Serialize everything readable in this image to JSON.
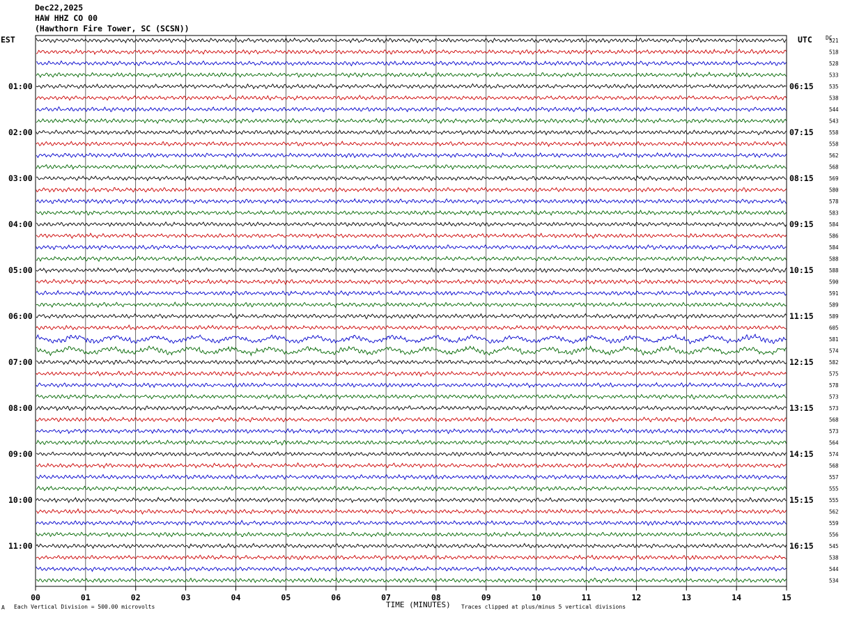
{
  "header": {
    "date": "Dec22,2025",
    "channel": "HAW HHZ CO 00",
    "station": "(Hawthorn Fire Tower, SC (SCSN))"
  },
  "left_zone_label": "EST",
  "right_zone_label": "UTC",
  "dc_label": "DC",
  "footer": {
    "scale_note": "Each Vertical Division =  500.00 microvolts",
    "xlabel": "TIME (MINUTES)",
    "clip_note": "Traces clipped at plus/minus 5 vertical divisions",
    "corner_mark": "A"
  },
  "chart_data": {
    "type": "line",
    "title": "Dec22,2025 HAW HHZ CO 00 (Hawthorn Fire Tower, SC (SCSN))",
    "xlabel": "TIME (MINUTES)",
    "ylabel": "",
    "xlim": [
      0,
      15
    ],
    "x_ticks": [
      "00",
      "01",
      "02",
      "03",
      "04",
      "05",
      "06",
      "07",
      "08",
      "09",
      "10",
      "11",
      "12",
      "13",
      "14",
      "15"
    ],
    "grid": true,
    "trace_colors": [
      "#000000",
      "#cc0000",
      "#0000cc",
      "#006600"
    ],
    "left_hour_labels": [
      "01:00",
      "02:00",
      "03:00",
      "04:00",
      "05:00",
      "06:00",
      "07:00",
      "08:00",
      "09:00",
      "10:00",
      "11:00"
    ],
    "right_hour_labels": [
      "06:15",
      "07:15",
      "08:15",
      "09:15",
      "10:15",
      "11:15",
      "12:15",
      "13:15",
      "14:15",
      "15:15",
      "16:15"
    ],
    "trace_count": 48,
    "dc_offsets": [
      521,
      518,
      528,
      533,
      535,
      538,
      544,
      543,
      558,
      558,
      562,
      568,
      569,
      580,
      578,
      583,
      584,
      586,
      584,
      588,
      588,
      590,
      591,
      589,
      589,
      605,
      581,
      574,
      582,
      575,
      578,
      573,
      573,
      568,
      573,
      564,
      574,
      568,
      557,
      555,
      555,
      562,
      559,
      556,
      545,
      538,
      544,
      534
    ],
    "scale_microvolts_per_division": 500.0,
    "clip_divisions": 5
  }
}
